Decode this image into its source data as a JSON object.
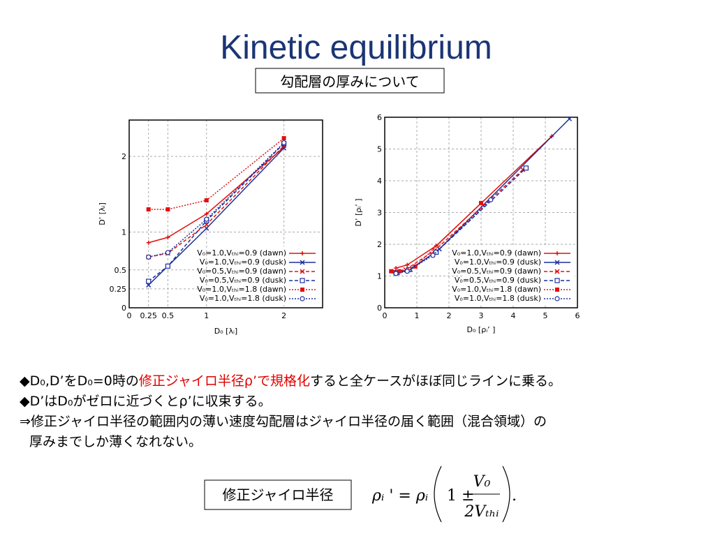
{
  "slide": {
    "title": "Kinetic equilibrium",
    "subtitle": "勾配層の厚みについて",
    "bullets": [
      [
        "◆D₀,D’をD₀=0時の",
        "修正ジャイロ半径ρ’で規格化",
        "すると全ケースがほぼ同じラインに乗る。"
      ],
      [
        "◆D’はD₀がゼロに近づくとρ’に収束する。"
      ],
      [
        "⇒修正ジャイロ半径の範囲内の薄い速度勾配層はジャイロ半径の届く範囲（混合領域）の"
      ],
      [
        "厚みまでしか薄くなれない。"
      ]
    ],
    "highlight_color": "#e00000",
    "formula_label": "修正ジャイロ半径",
    "formula": {
      "lhs": "ρᵢ ' = ρᵢ",
      "one_pm": "1 ±",
      "numerator": "V₀",
      "denominator": "2Vₜₕᵢ",
      "end": "."
    }
  },
  "chart_data": [
    {
      "type": "line",
      "x_label": "D₀ [λᵢ]",
      "y_label": "D’ [λᵢ]",
      "xlim": [
        0,
        2.5
      ],
      "ylim": [
        0,
        2.48
      ],
      "xticks": [
        0,
        0.25,
        0.5,
        1,
        2
      ],
      "yticks": [
        0,
        0.25,
        0.5,
        1,
        2
      ],
      "grid": true,
      "legend": "lower right",
      "series": [
        {
          "name": "V₀=1.0,Vₜₕᵢ=0.9 (dawn)",
          "color": "#e01010",
          "linestyle": "solid",
          "marker": "plus",
          "x": [
            0.25,
            0.5,
            1,
            2
          ],
          "values": [
            0.86,
            0.93,
            1.24,
            2.12
          ]
        },
        {
          "name": "V₀=1.0,Vₜₕᵢ=0.9 (dusk)",
          "color": "#1c2f9c",
          "linestyle": "solid",
          "marker": "x",
          "x": [
            0.25,
            0.5,
            1,
            2
          ],
          "values": [
            0.3,
            0.55,
            1.05,
            2.11
          ]
        },
        {
          "name": "V₀=0.5,Vₜₕᵢ=0.9 (dawn)",
          "color": "#e01010",
          "linestyle": "dashed",
          "marker": "x",
          "x": [
            0.25,
            0.5,
            1,
            2
          ],
          "values": [
            0.67,
            0.72,
            1.1,
            2.14
          ]
        },
        {
          "name": "V₀=0.5,Vₜₕᵢ=0.9 (dusk)",
          "color": "#1c2f9c",
          "linestyle": "dashed",
          "marker": "square",
          "x": [
            0.25,
            0.5,
            1,
            2
          ],
          "values": [
            0.35,
            0.55,
            1.15,
            2.17
          ]
        },
        {
          "name": "V₀=1.0,Vₜₕᵢ=1.8 (dawn)",
          "color": "#e01010",
          "linestyle": "dotted",
          "marker": "filled-square",
          "x": [
            0.25,
            0.5,
            1,
            2
          ],
          "values": [
            1.3,
            1.3,
            1.42,
            2.24
          ]
        },
        {
          "name": "V₀=1.0,Vₜₕᵢ=1.8 (dusk)",
          "color": "#1c2f9c",
          "linestyle": "dotted",
          "marker": "circle",
          "x": [
            0.25,
            0.5,
            1,
            2
          ],
          "values": [
            0.67,
            0.73,
            1.17,
            2.18
          ]
        }
      ]
    },
    {
      "type": "line",
      "x_label": "D₀ [ρᵢ’ ]",
      "y_label": "D’ [ρᵢ’ ]",
      "xlim": [
        0,
        6
      ],
      "ylim": [
        0,
        6
      ],
      "xticks": [
        0,
        1,
        2,
        3,
        4,
        5,
        6
      ],
      "yticks": [
        0,
        1,
        2,
        3,
        4,
        5,
        6
      ],
      "grid": true,
      "legend": "lower right",
      "series": [
        {
          "name": "V₀=1.0,Vₜₕᵢ=0.9 (dawn)",
          "color": "#e01010",
          "linestyle": "solid",
          "marker": "plus",
          "x": [
            0.35,
            0.7,
            1.6,
            5.2
          ],
          "values": [
            1.25,
            1.35,
            1.95,
            5.4
          ]
        },
        {
          "name": "V₀=1.0,Vₜₕᵢ=0.9 (dusk)",
          "color": "#1c2f9c",
          "linestyle": "solid",
          "marker": "x",
          "x": [
            0.4,
            0.8,
            1.7,
            5.75
          ],
          "values": [
            1.1,
            1.2,
            1.85,
            5.95
          ]
        },
        {
          "name": "V₀=0.5,Vₜₕᵢ=0.9 (dawn)",
          "color": "#e01010",
          "linestyle": "dashed",
          "marker": "x",
          "x": [
            0.3,
            0.65,
            1.55,
            4.3
          ],
          "values": [
            1.15,
            1.2,
            1.8,
            4.35
          ]
        },
        {
          "name": "V₀=0.5,Vₜₕᵢ=0.9 (dusk)",
          "color": "#1c2f9c",
          "linestyle": "dashed",
          "marker": "square",
          "x": [
            0.35,
            0.75,
            1.6,
            4.4
          ],
          "values": [
            1.1,
            1.2,
            1.75,
            4.4
          ]
        },
        {
          "name": "V₀=1.0,Vₜₕᵢ=1.8 (dawn)",
          "color": "#e01010",
          "linestyle": "dotted",
          "marker": "filled-square",
          "x": [
            0.2,
            0.45,
            0.95,
            3.0
          ],
          "values": [
            1.15,
            1.15,
            1.3,
            3.3
          ]
        },
        {
          "name": "V₀=1.0,Vₜₕᵢ=1.8 (dusk)",
          "color": "#1c2f9c",
          "linestyle": "dotted",
          "marker": "circle",
          "x": [
            0.35,
            0.7,
            1.5,
            3.3
          ],
          "values": [
            1.08,
            1.15,
            1.65,
            3.4
          ]
        }
      ]
    }
  ]
}
